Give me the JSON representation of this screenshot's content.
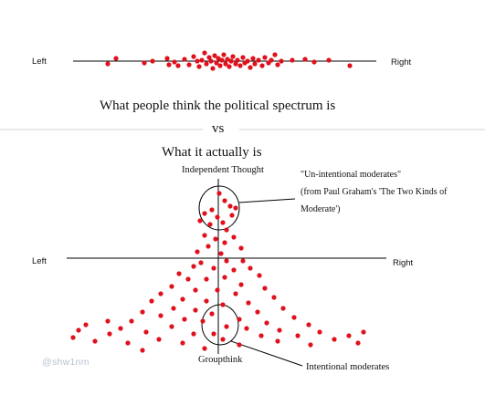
{
  "top": {
    "left_label": "Left",
    "right_label": "Right",
    "caption": "What people think the political spectrum is"
  },
  "vs_label": "vs",
  "bottom": {
    "caption": "What it actually is",
    "top_axis_label": "Independent Thought",
    "bottom_axis_label": "Groupthink",
    "left_label": "Left",
    "right_label": "Right",
    "unintentional": {
      "line1": "\"Un-intentional moderates\"",
      "line2": "(from Paul Graham's 'The Two Kinds of",
      "line3": "Moderate')"
    },
    "intentional": "Intentional moderates"
  },
  "watermark": "@shw1nm",
  "colors": {
    "dot": "#e0101c",
    "line": "#000000",
    "divider": "#cfcfcf",
    "watermark": "#b9c2cf"
  }
}
